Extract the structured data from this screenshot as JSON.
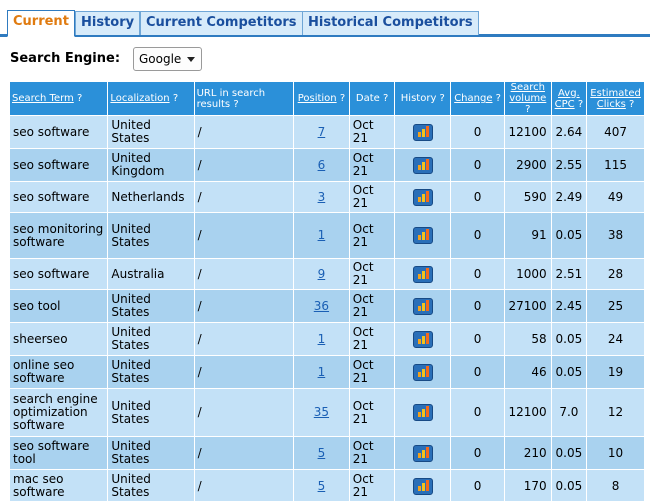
{
  "tabs": [
    {
      "label": "Current",
      "active": true
    },
    {
      "label": "History",
      "active": false
    },
    {
      "label": "Current Competitors",
      "active": false
    },
    {
      "label": "Historical Competitors",
      "active": false
    }
  ],
  "engine": {
    "label": "Search Engine:",
    "value": "Google"
  },
  "columns": {
    "search_term": "Search Term",
    "localization": "Localization",
    "url": "URL in search results",
    "position": "Position",
    "date": "Date",
    "history": "History",
    "change": "Change",
    "volume": "Search volume",
    "cpc": "Avg. CPC",
    "clicks": "Estimated Clicks",
    "help": "?"
  },
  "rows": [
    {
      "term": "seo software",
      "loc": "United States",
      "url": "/",
      "pos": "7",
      "date": "Oct 21",
      "change": "0",
      "volume": "12100",
      "cpc": "2.64",
      "clicks": "407"
    },
    {
      "term": "seo software",
      "loc": "United Kingdom",
      "url": "/",
      "pos": "6",
      "date": "Oct 21",
      "change": "0",
      "volume": "2900",
      "cpc": "2.55",
      "clicks": "115"
    },
    {
      "term": "seo software",
      "loc": "Netherlands",
      "url": "/",
      "pos": "3",
      "date": "Oct 21",
      "change": "0",
      "volume": "590",
      "cpc": "2.49",
      "clicks": "49"
    },
    {
      "term": "seo monitoring software",
      "loc": "United States",
      "url": "/",
      "pos": "1",
      "date": "Oct 21",
      "change": "0",
      "volume": "91",
      "cpc": "0.05",
      "clicks": "38"
    },
    {
      "term": "seo software",
      "loc": "Australia",
      "url": "/",
      "pos": "9",
      "date": "Oct 21",
      "change": "0",
      "volume": "1000",
      "cpc": "2.51",
      "clicks": "28"
    },
    {
      "term": "seo tool",
      "loc": "United States",
      "url": "/",
      "pos": "36",
      "date": "Oct 21",
      "change": "0",
      "volume": "27100",
      "cpc": "2.45",
      "clicks": "25"
    },
    {
      "term": "sheerseo",
      "loc": "United States",
      "url": "/",
      "pos": "1",
      "date": "Oct 21",
      "change": "0",
      "volume": "58",
      "cpc": "0.05",
      "clicks": "24"
    },
    {
      "term": "online seo software",
      "loc": "United States",
      "url": "/",
      "pos": "1",
      "date": "Oct 21",
      "change": "0",
      "volume": "46",
      "cpc": "0.05",
      "clicks": "19"
    },
    {
      "term": "search engine optimization software",
      "loc": "United States",
      "url": "/",
      "pos": "35",
      "date": "Oct 21",
      "change": "0",
      "volume": "12100",
      "cpc": "7.0",
      "clicks": "12"
    },
    {
      "term": "seo software tool",
      "loc": "United States",
      "url": "/",
      "pos": "5",
      "date": "Oct 21",
      "change": "0",
      "volume": "210",
      "cpc": "0.05",
      "clicks": "10"
    },
    {
      "term": "mac seo software",
      "loc": "United States",
      "url": "/",
      "pos": "5",
      "date": "Oct 21",
      "change": "0",
      "volume": "170",
      "cpc": "0.05",
      "clicks": "8"
    }
  ]
}
